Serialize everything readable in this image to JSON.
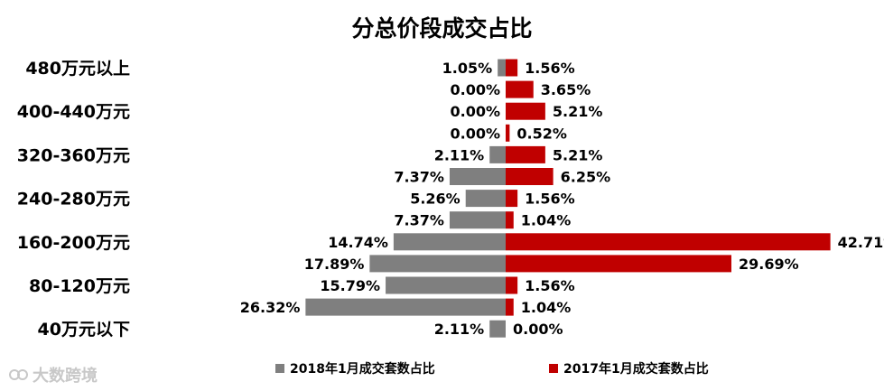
{
  "chart_data": {
    "type": "bar",
    "orientation": "horizontal-diverging",
    "title": "分总价段成交占比",
    "category_labels": [
      "480万元以上",
      "400-440万元",
      "320-360万元",
      "240-280万元",
      "160-200万元",
      "80-120万元",
      "40万元以下"
    ],
    "rows": 13,
    "series": [
      {
        "name": "2018年1月成交套数占比",
        "color": "#7f7f7f",
        "direction": "left",
        "values": [
          1.05,
          0.0,
          0.0,
          0.0,
          2.11,
          7.37,
          5.26,
          7.37,
          14.74,
          17.89,
          15.79,
          26.32,
          2.11
        ],
        "labels": [
          "1.05%",
          "0.00%",
          "0.00%",
          "0.00%",
          "2.11%",
          "7.37%",
          "5.26%",
          "7.37%",
          "14.74%",
          "17.89%",
          "15.79%",
          "26.32%",
          "2.11%"
        ]
      },
      {
        "name": "2017年1月成交套数占比",
        "color": "#c00000",
        "direction": "right",
        "values": [
          1.56,
          3.65,
          5.21,
          0.52,
          5.21,
          6.25,
          1.56,
          1.04,
          42.71,
          29.69,
          1.56,
          1.04,
          0.0
        ],
        "labels": [
          "1.56%",
          "3.65%",
          "5.21%",
          "0.52%",
          "5.21%",
          "6.25%",
          "1.56%",
          "1.04%",
          "42.71%",
          "29.69%",
          "1.56%",
          "1.04%",
          "0.00%"
        ]
      }
    ],
    "legend_position": "bottom"
  },
  "watermark": "大数跨境"
}
